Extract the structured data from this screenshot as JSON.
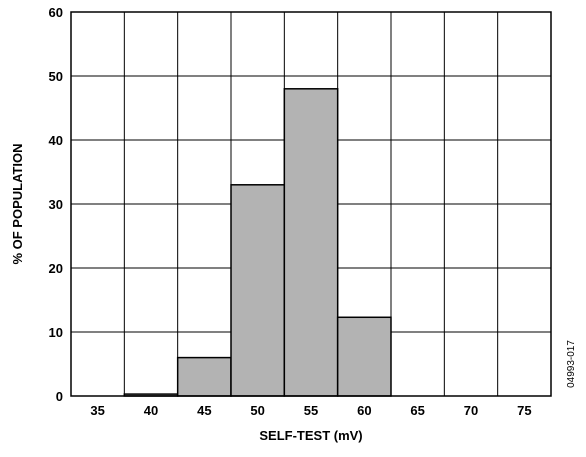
{
  "chart_data": {
    "type": "bar",
    "categories": [
      "35",
      "40",
      "45",
      "50",
      "55",
      "60",
      "65",
      "70",
      "75"
    ],
    "values": [
      0,
      0.3,
      6,
      33,
      48,
      12.3,
      0,
      0,
      0
    ],
    "xlabel": "SELF-TEST (mV)",
    "ylabel": "% OF POPULATION",
    "yticks": [
      "0",
      "10",
      "20",
      "30",
      "40",
      "50",
      "60"
    ],
    "ylim": [
      0,
      60
    ],
    "grid": true,
    "bar_color": "#b3b3b3",
    "edge_color": "#000000"
  },
  "figure_code": "04993-017"
}
